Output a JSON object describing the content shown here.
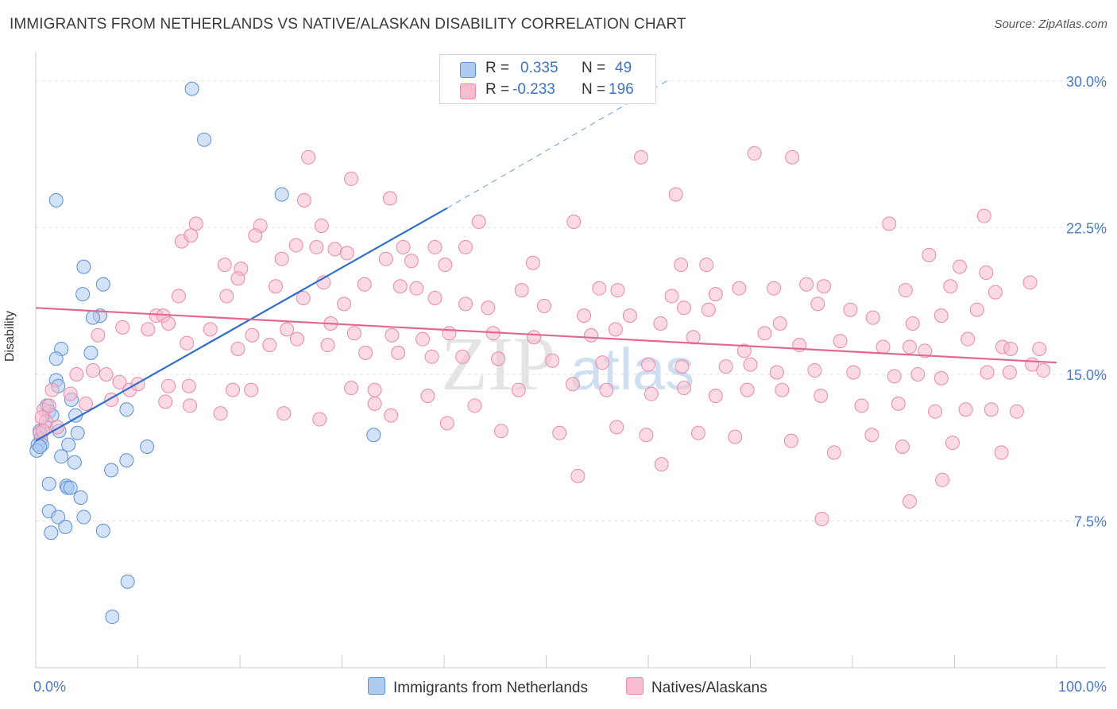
{
  "title": "IMMIGRANTS FROM NETHERLANDS VS NATIVE/ALASKAN DISABILITY CORRELATION CHART",
  "source": "Source: ZipAtlas.com",
  "watermark": {
    "zip": "ZIP",
    "atlas": "atlas"
  },
  "legend": {
    "r_label": "R =",
    "n_label": "N =",
    "series": [
      {
        "name": "Immigrants from Netherlands",
        "r": "0.335",
        "n": "49",
        "fill": "#aecbf0",
        "stroke": "#5b8fd6",
        "line": "#2f6fc9"
      },
      {
        "name": "Natives/Alaskans",
        "r": "-0.233",
        "n": "196",
        "fill": "#f8bcd0",
        "stroke": "#e88aa8",
        "line": "#e3678f"
      }
    ]
  },
  "chart_data": {
    "type": "scatter",
    "title": "IMMIGRANTS FROM NETHERLANDS VS NATIVE/ALASKAN DISABILITY CORRELATION CHART",
    "xlabel": "",
    "ylabel": "Disability",
    "xlim": [
      0,
      100
    ],
    "ylim": [
      0,
      31.5
    ],
    "x_tick_labels": [
      "0.0%",
      "100.0%"
    ],
    "y_ticks": [
      7.5,
      15.0,
      22.5,
      30.0
    ],
    "y_tick_labels": [
      "7.5%",
      "15.0%",
      "22.5%",
      "30.0%"
    ],
    "grid": true,
    "legend_position": "top-center",
    "series": [
      {
        "name": "Immigrants from Netherlands",
        "r": 0.335,
        "n": 49,
        "trend": {
          "x0": 0,
          "y0": 11.6,
          "x1": 40.3,
          "y1": 23.5,
          "dash_to_x": 61.8,
          "dash_to_y": 30.0
        },
        "points": [
          [
            15.3,
            29.6
          ],
          [
            16.5,
            27.0
          ],
          [
            2.0,
            23.9
          ],
          [
            24.1,
            24.2
          ],
          [
            4.7,
            20.5
          ],
          [
            6.6,
            19.6
          ],
          [
            4.6,
            19.1
          ],
          [
            6.3,
            18.0
          ],
          [
            5.6,
            17.9
          ],
          [
            2.5,
            16.3
          ],
          [
            5.4,
            16.1
          ],
          [
            2.0,
            15.8
          ],
          [
            2.0,
            14.7
          ],
          [
            2.2,
            14.4
          ],
          [
            3.5,
            13.7
          ],
          [
            1.1,
            13.4
          ],
          [
            1.3,
            13.1
          ],
          [
            1.6,
            12.9
          ],
          [
            3.9,
            12.9
          ],
          [
            8.9,
            13.2
          ],
          [
            0.4,
            12.1
          ],
          [
            2.3,
            12.1
          ],
          [
            4.1,
            12.0
          ],
          [
            0.5,
            11.7
          ],
          [
            0.2,
            11.4
          ],
          [
            0.6,
            11.4
          ],
          [
            0.1,
            11.1
          ],
          [
            3.2,
            11.4
          ],
          [
            10.9,
            11.3
          ],
          [
            2.5,
            10.8
          ],
          [
            3.8,
            10.5
          ],
          [
            8.9,
            10.6
          ],
          [
            7.4,
            10.1
          ],
          [
            1.3,
            9.4
          ],
          [
            3.0,
            9.3
          ],
          [
            3.1,
            9.2
          ],
          [
            3.4,
            9.2
          ],
          [
            4.4,
            8.7
          ],
          [
            1.3,
            8.0
          ],
          [
            2.2,
            7.7
          ],
          [
            4.7,
            7.7
          ],
          [
            2.9,
            7.2
          ],
          [
            6.6,
            7.0
          ],
          [
            1.5,
            6.9
          ],
          [
            9.0,
            4.4
          ],
          [
            7.5,
            2.6
          ],
          [
            33.1,
            11.9
          ],
          [
            0.4,
            11.3
          ],
          [
            1.0,
            12.3
          ]
        ]
      },
      {
        "name": "Natives/Alaskans",
        "r": -0.233,
        "n": 196,
        "trend": {
          "x0": 0,
          "y0": 18.4,
          "x1": 100,
          "y1": 15.6
        },
        "points": [
          [
            70.4,
            26.3
          ],
          [
            74.1,
            26.1
          ],
          [
            26.7,
            26.1
          ],
          [
            59.3,
            26.1
          ],
          [
            30.9,
            25.0
          ],
          [
            62.7,
            24.2
          ],
          [
            34.7,
            24.0
          ],
          [
            26.3,
            23.9
          ],
          [
            92.9,
            23.1
          ],
          [
            15.7,
            22.7
          ],
          [
            22.0,
            22.6
          ],
          [
            28.0,
            22.6
          ],
          [
            43.4,
            22.8
          ],
          [
            52.7,
            22.8
          ],
          [
            83.6,
            22.7
          ],
          [
            21.5,
            22.1
          ],
          [
            14.3,
            21.8
          ],
          [
            15.2,
            22.1
          ],
          [
            25.5,
            21.6
          ],
          [
            27.5,
            21.5
          ],
          [
            29.3,
            21.4
          ],
          [
            30.5,
            21.2
          ],
          [
            36.0,
            21.5
          ],
          [
            39.1,
            21.5
          ],
          [
            42.1,
            21.5
          ],
          [
            34.3,
            20.9
          ],
          [
            36.8,
            20.8
          ],
          [
            18.5,
            20.6
          ],
          [
            20.1,
            20.4
          ],
          [
            24.1,
            20.9
          ],
          [
            40.1,
            20.6
          ],
          [
            48.7,
            20.7
          ],
          [
            63.2,
            20.6
          ],
          [
            65.7,
            20.6
          ],
          [
            87.5,
            21.1
          ],
          [
            90.5,
            20.5
          ],
          [
            93.1,
            20.2
          ],
          [
            19.8,
            19.9
          ],
          [
            23.5,
            19.5
          ],
          [
            28.2,
            19.7
          ],
          [
            32.2,
            19.6
          ],
          [
            35.7,
            19.5
          ],
          [
            37.3,
            19.4
          ],
          [
            47.6,
            19.3
          ],
          [
            55.2,
            19.4
          ],
          [
            57.0,
            19.3
          ],
          [
            62.3,
            19.0
          ],
          [
            66.6,
            19.1
          ],
          [
            68.9,
            19.4
          ],
          [
            72.3,
            19.4
          ],
          [
            75.5,
            19.6
          ],
          [
            77.2,
            19.5
          ],
          [
            85.2,
            19.3
          ],
          [
            89.6,
            19.5
          ],
          [
            94.0,
            19.2
          ],
          [
            97.4,
            19.7
          ],
          [
            14.0,
            19.0
          ],
          [
            18.7,
            19.0
          ],
          [
            26.2,
            18.9
          ],
          [
            30.2,
            18.6
          ],
          [
            39.1,
            18.9
          ],
          [
            42.1,
            18.6
          ],
          [
            44.3,
            18.4
          ],
          [
            49.8,
            18.5
          ],
          [
            53.7,
            18.0
          ],
          [
            58.2,
            18.0
          ],
          [
            63.5,
            18.4
          ],
          [
            65.9,
            18.3
          ],
          [
            72.9,
            17.6
          ],
          [
            76.6,
            18.6
          ],
          [
            79.8,
            18.3
          ],
          [
            82.0,
            17.9
          ],
          [
            85.9,
            17.6
          ],
          [
            88.7,
            18.0
          ],
          [
            92.2,
            18.3
          ],
          [
            11.8,
            18.0
          ],
          [
            12.5,
            18.0
          ],
          [
            13.0,
            17.6
          ],
          [
            17.1,
            17.3
          ],
          [
            21.2,
            17.0
          ],
          [
            24.6,
            17.3
          ],
          [
            28.9,
            17.6
          ],
          [
            31.2,
            17.1
          ],
          [
            34.9,
            17.0
          ],
          [
            37.9,
            16.8
          ],
          [
            40.5,
            17.1
          ],
          [
            44.8,
            17.1
          ],
          [
            48.8,
            16.9
          ],
          [
            54.4,
            17.0
          ],
          [
            56.8,
            17.3
          ],
          [
            61.2,
            17.6
          ],
          [
            64.4,
            16.9
          ],
          [
            69.4,
            16.2
          ],
          [
            71.4,
            17.1
          ],
          [
            74.8,
            16.5
          ],
          [
            78.8,
            16.7
          ],
          [
            83.0,
            16.4
          ],
          [
            85.6,
            16.4
          ],
          [
            87.1,
            16.2
          ],
          [
            91.3,
            16.8
          ],
          [
            94.7,
            16.4
          ],
          [
            95.5,
            16.3
          ],
          [
            98.3,
            16.3
          ],
          [
            6.1,
            17.0
          ],
          [
            8.5,
            17.4
          ],
          [
            11.0,
            17.3
          ],
          [
            14.8,
            16.6
          ],
          [
            19.8,
            16.3
          ],
          [
            22.9,
            16.5
          ],
          [
            25.6,
            16.8
          ],
          [
            28.6,
            16.5
          ],
          [
            32.3,
            16.1
          ],
          [
            35.5,
            16.1
          ],
          [
            38.8,
            15.9
          ],
          [
            41.8,
            15.9
          ],
          [
            45.3,
            15.8
          ],
          [
            50.6,
            15.7
          ],
          [
            55.5,
            15.6
          ],
          [
            60.0,
            15.5
          ],
          [
            63.3,
            15.4
          ],
          [
            67.6,
            15.4
          ],
          [
            70.0,
            15.5
          ],
          [
            72.6,
            15.1
          ],
          [
            76.3,
            15.2
          ],
          [
            80.1,
            15.1
          ],
          [
            84.1,
            14.9
          ],
          [
            86.4,
            15.0
          ],
          [
            88.7,
            14.8
          ],
          [
            93.2,
            15.1
          ],
          [
            95.4,
            15.1
          ],
          [
            97.6,
            15.5
          ],
          [
            98.7,
            15.2
          ],
          [
            4.0,
            15.0
          ],
          [
            5.6,
            15.2
          ],
          [
            6.9,
            15.0
          ],
          [
            8.2,
            14.6
          ],
          [
            9.2,
            14.2
          ],
          [
            10.0,
            14.5
          ],
          [
            13.0,
            14.4
          ],
          [
            15.0,
            14.4
          ],
          [
            19.3,
            14.2
          ],
          [
            21.1,
            14.2
          ],
          [
            30.9,
            14.3
          ],
          [
            33.2,
            14.2
          ],
          [
            38.4,
            13.9
          ],
          [
            43.0,
            13.4
          ],
          [
            47.3,
            14.2
          ],
          [
            52.6,
            14.5
          ],
          [
            55.9,
            14.2
          ],
          [
            60.3,
            14.0
          ],
          [
            63.5,
            14.3
          ],
          [
            66.6,
            13.9
          ],
          [
            69.7,
            14.2
          ],
          [
            73.1,
            14.2
          ],
          [
            76.9,
            13.9
          ],
          [
            80.9,
            13.4
          ],
          [
            84.5,
            13.5
          ],
          [
            88.1,
            13.1
          ],
          [
            91.1,
            13.2
          ],
          [
            93.6,
            13.2
          ],
          [
            96.1,
            13.1
          ],
          [
            1.6,
            14.2
          ],
          [
            3.4,
            14.0
          ],
          [
            4.9,
            13.5
          ],
          [
            7.4,
            13.7
          ],
          [
            12.7,
            13.6
          ],
          [
            15.1,
            13.4
          ],
          [
            18.1,
            13.0
          ],
          [
            24.3,
            13.0
          ],
          [
            27.8,
            12.7
          ],
          [
            34.8,
            12.9
          ],
          [
            40.3,
            12.5
          ],
          [
            45.6,
            12.1
          ],
          [
            51.3,
            12.0
          ],
          [
            56.9,
            12.3
          ],
          [
            59.8,
            11.9
          ],
          [
            64.9,
            12.0
          ],
          [
            68.5,
            11.8
          ],
          [
            74.0,
            11.6
          ],
          [
            78.2,
            11.0
          ],
          [
            81.9,
            11.9
          ],
          [
            84.9,
            11.3
          ],
          [
            89.8,
            11.5
          ],
          [
            94.6,
            11.0
          ],
          [
            0.8,
            13.2
          ],
          [
            1.3,
            13.4
          ],
          [
            2.1,
            12.3
          ],
          [
            0.4,
            12.0
          ],
          [
            1.0,
            12.6
          ],
          [
            0.6,
            12.8
          ],
          [
            33.2,
            13.5
          ],
          [
            53.1,
            9.8
          ],
          [
            61.3,
            10.4
          ],
          [
            77.0,
            7.6
          ],
          [
            85.6,
            8.5
          ],
          [
            88.8,
            9.6
          ],
          [
            0.7,
            12.1
          ]
        ]
      }
    ]
  }
}
